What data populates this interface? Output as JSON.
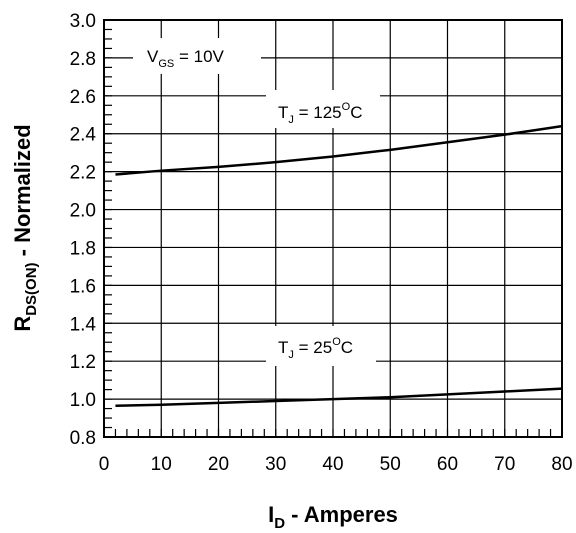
{
  "chart_data": {
    "type": "line",
    "xlabel": {
      "main": "I",
      "sub": "D",
      "rest": " - Amperes"
    },
    "ylabel": {
      "main": "R",
      "sub": "DS(ON)",
      "rest": " - Normalized"
    },
    "xlim": [
      0,
      80
    ],
    "ylim": [
      0.8,
      3.0
    ],
    "x_ticks": [
      "0",
      "10",
      "20",
      "30",
      "40",
      "50",
      "60",
      "70",
      "80"
    ],
    "y_ticks": [
      "0.8",
      "1.0",
      "1.2",
      "1.4",
      "1.6",
      "1.8",
      "2.0",
      "2.2",
      "2.4",
      "2.6",
      "2.8",
      "3.0"
    ],
    "grid": true,
    "series": [
      {
        "name": {
          "main": "T",
          "sub": "J",
          "rest": " = 125",
          "sup": "O",
          "unit": "C"
        },
        "x": [
          2,
          10,
          20,
          30,
          40,
          50,
          60,
          70,
          80
        ],
        "y": [
          2.185,
          2.205,
          2.225,
          2.25,
          2.28,
          2.315,
          2.355,
          2.395,
          2.44
        ]
      },
      {
        "name": {
          "main": "T",
          "sub": "J",
          "rest": " = 25",
          "sup": "O",
          "unit": "C"
        },
        "x": [
          2,
          10,
          20,
          30,
          40,
          50,
          60,
          70,
          80
        ],
        "y": [
          0.965,
          0.97,
          0.98,
          0.99,
          1.0,
          1.01,
          1.025,
          1.04,
          1.055
        ]
      }
    ],
    "annotations": [
      {
        "main": "V",
        "sub": "GS",
        "rest": " = 10V"
      }
    ]
  }
}
